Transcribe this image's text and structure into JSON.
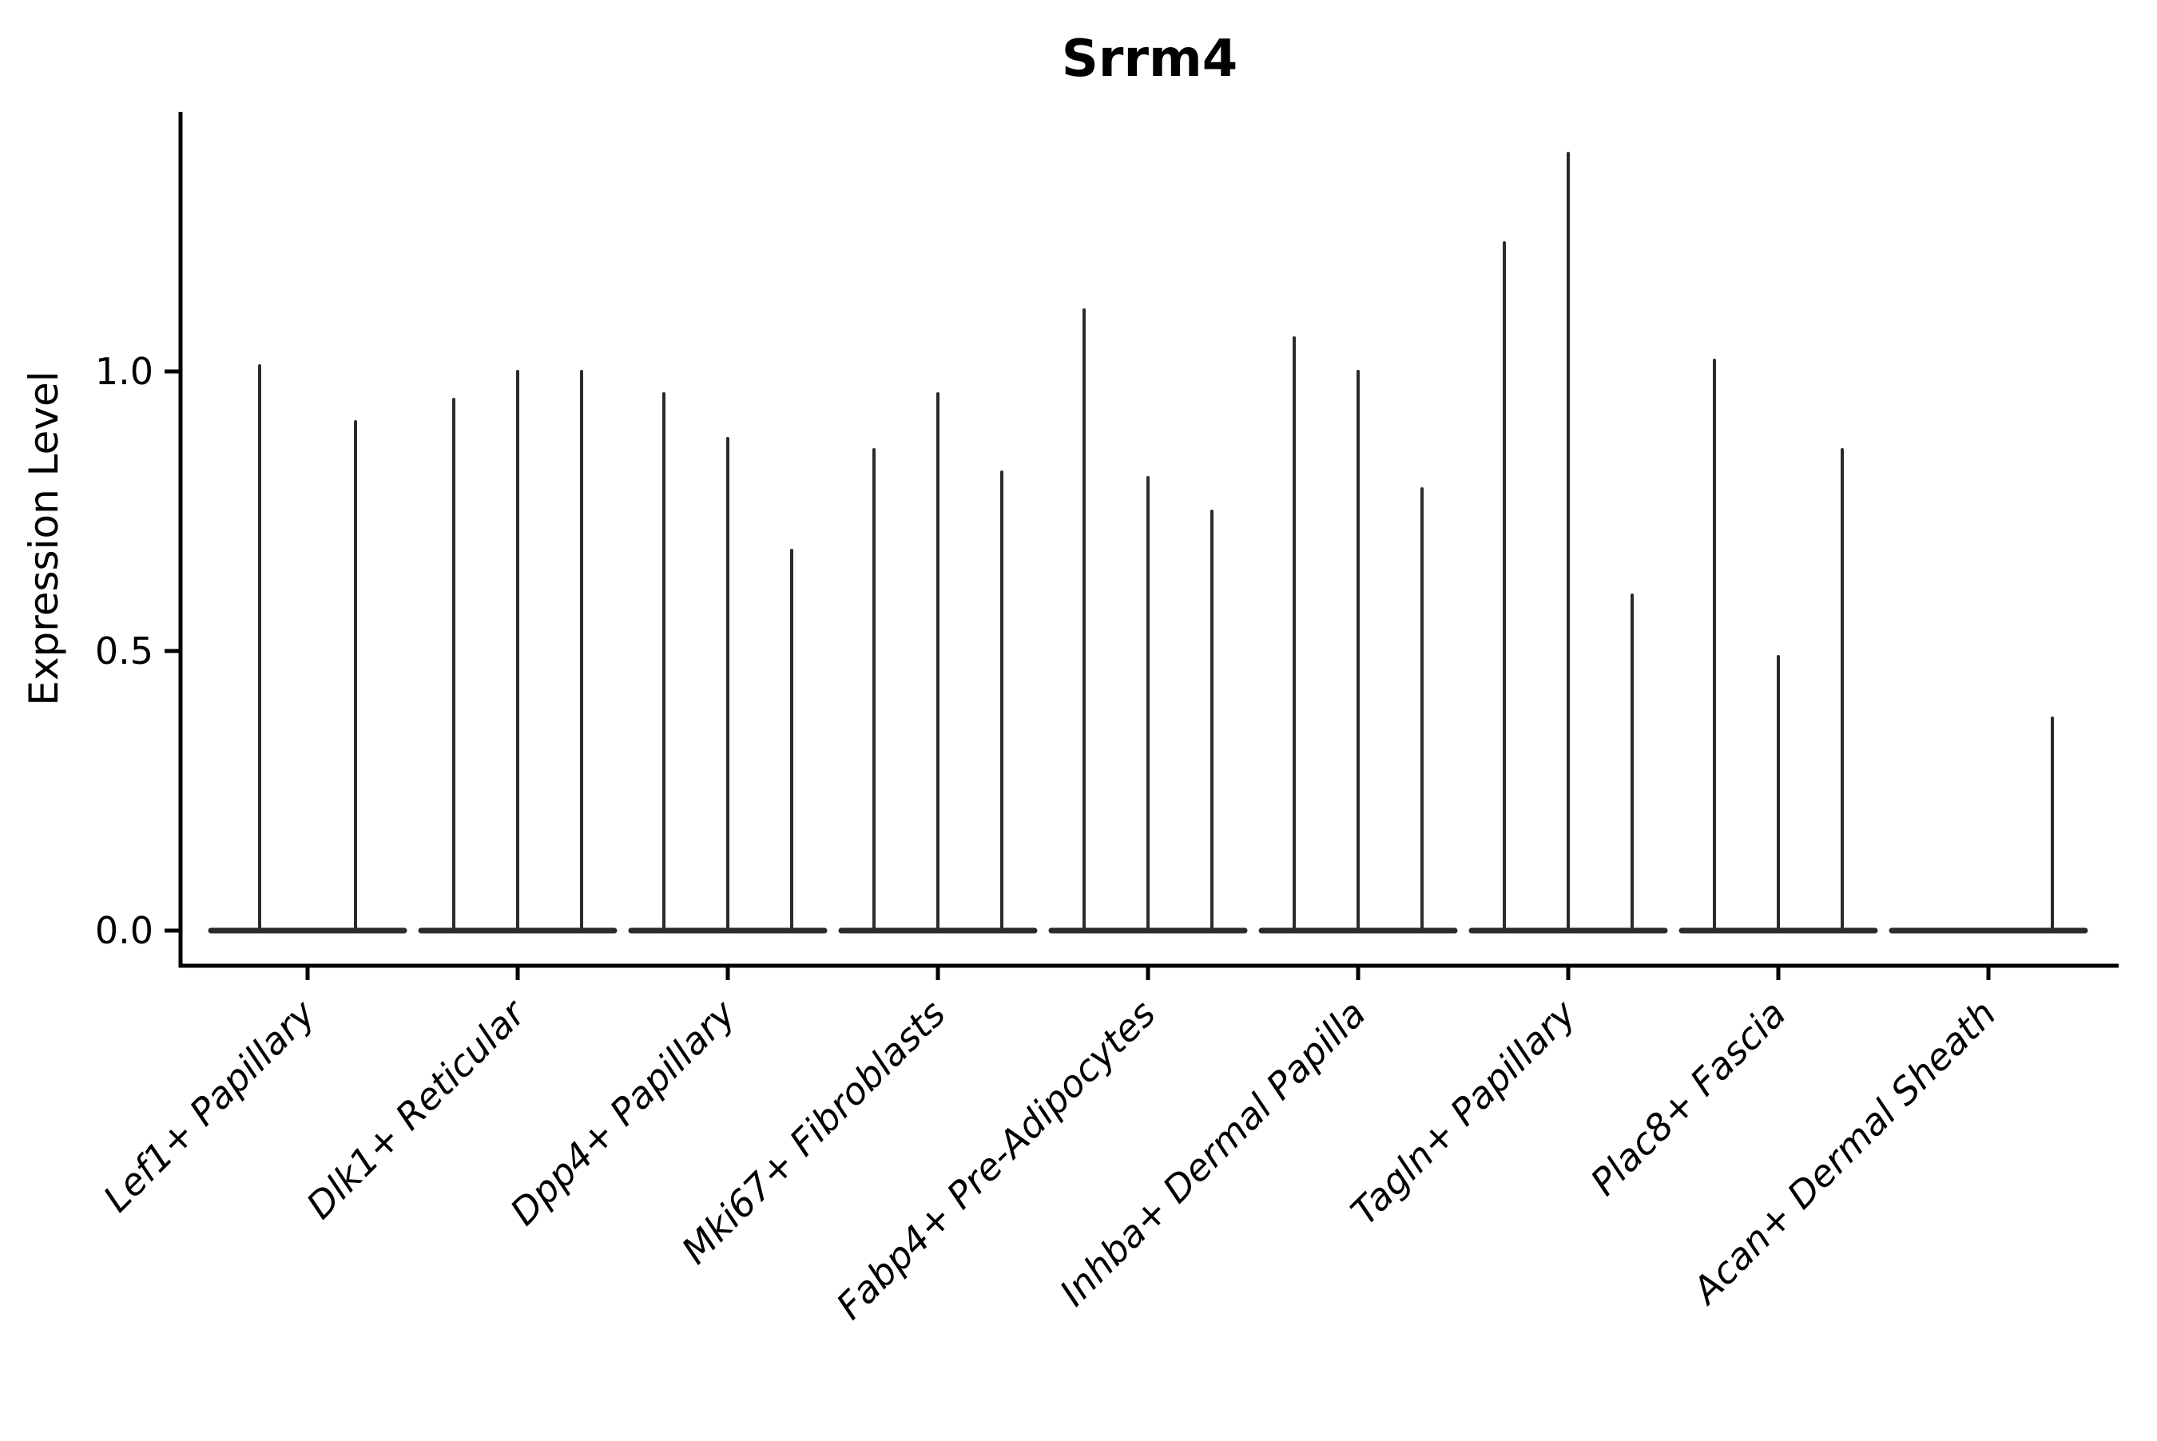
{
  "page": {
    "background": "#ffffff"
  },
  "chart_data": {
    "type": "violin",
    "title": "Srrm4",
    "title_bold": true,
    "xlabel": "",
    "ylabel": "Expression Level",
    "legend": "none",
    "grid": false,
    "axis_color": "#000000",
    "violin_color": "#2b2b2b",
    "ylim": [
      -0.06,
      1.47
    ],
    "yticks": [
      {
        "value": 0.0,
        "label": "0.0"
      },
      {
        "value": 0.5,
        "label": "0.5"
      },
      {
        "value": 1.0,
        "label": "1.0"
      }
    ],
    "style_note": "Seurat-style stacked violin: each violin is nearly degenerate - a flat base at expression 0 with a thin vertical spike up to the max expression value",
    "categories": [
      {
        "label": "Lef1+ Papillary",
        "violins": [
          {
            "dx": -60,
            "max": 1.01
          },
          {
            "dx": 60,
            "max": 0.91
          }
        ]
      },
      {
        "label": "Dlk1+ Reticular",
        "violins": [
          {
            "dx": -80,
            "max": 0.95
          },
          {
            "dx": 0,
            "max": 1.0
          },
          {
            "dx": 80,
            "max": 1.0
          }
        ]
      },
      {
        "label": "Dpp4+ Papillary",
        "violins": [
          {
            "dx": -80,
            "max": 0.96
          },
          {
            "dx": 0,
            "max": 0.88
          },
          {
            "dx": 80,
            "max": 0.68
          }
        ]
      },
      {
        "label": "Mki67+ Fibroblasts",
        "violins": [
          {
            "dx": -80,
            "max": 0.86
          },
          {
            "dx": 0,
            "max": 0.96
          },
          {
            "dx": 80,
            "max": 0.82
          }
        ]
      },
      {
        "label": "Fabp4+ Pre-Adipocytes",
        "violins": [
          {
            "dx": -80,
            "max": 1.11
          },
          {
            "dx": 0,
            "max": 0.81
          },
          {
            "dx": 80,
            "max": 0.75
          }
        ]
      },
      {
        "label": "Inhba+ Dermal Papilla",
        "violins": [
          {
            "dx": -80,
            "max": 1.06
          },
          {
            "dx": 0,
            "max": 1.0
          },
          {
            "dx": 80,
            "max": 0.79
          }
        ]
      },
      {
        "label": "Tagln+ Papillary",
        "violins": [
          {
            "dx": -80,
            "max": 1.23
          },
          {
            "dx": 0,
            "max": 1.39
          },
          {
            "dx": 80,
            "max": 0.6
          }
        ]
      },
      {
        "label": "Plac8+ Fascia",
        "violins": [
          {
            "dx": -80,
            "max": 1.02
          },
          {
            "dx": 0,
            "max": 0.49
          },
          {
            "dx": 80,
            "max": 0.86
          }
        ]
      },
      {
        "label": "Acan+ Dermal Sheath",
        "violins": [
          {
            "dx": 80,
            "max": 0.38
          }
        ]
      }
    ]
  }
}
